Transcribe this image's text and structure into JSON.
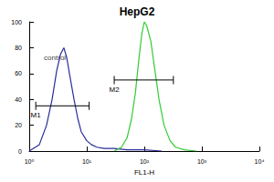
{
  "chart_data": {
    "type": "line",
    "title": "HepG2",
    "x_label": "FL1-H",
    "log": "x",
    "grid": false,
    "xlim": [
      1,
      10000
    ],
    "xticks": [
      {
        "value": 1,
        "label": "10⁰"
      },
      {
        "value": 10,
        "label": "10¹"
      },
      {
        "value": 100,
        "label": "10²"
      },
      {
        "value": 1000,
        "label": "10³"
      },
      {
        "value": 10000,
        "label": "10⁴"
      }
    ],
    "ylim": [
      0,
      100
    ],
    "yticks": [
      0,
      20,
      40,
      60,
      80,
      100
    ],
    "series": [
      {
        "color": "#2b2b9c",
        "x": [
          1,
          1.5,
          2,
          2.5,
          3,
          3.5,
          4,
          4.5,
          5,
          6,
          7,
          8,
          10,
          12,
          15,
          20,
          30,
          50,
          100,
          200
        ],
        "values": [
          0,
          5,
          20,
          40,
          62,
          75,
          80,
          72,
          60,
          40,
          25,
          15,
          8,
          5,
          3,
          2,
          2,
          1,
          1,
          0
        ]
      },
      {
        "color": "#33cc33",
        "x": [
          30,
          40,
          50,
          60,
          70,
          80,
          90,
          100,
          110,
          130,
          150,
          180,
          220,
          280,
          350,
          500,
          800
        ],
        "values": [
          0,
          3,
          10,
          25,
          45,
          70,
          90,
          100,
          97,
          85,
          65,
          40,
          20,
          8,
          3,
          1,
          0
        ]
      }
    ],
    "annotations": [
      {
        "text": "control",
        "x": 1.5,
        "y": 72
      }
    ],
    "markers": [
      {
        "label": "M1",
        "x": [
          1.3,
          11
        ],
        "y": 35
      },
      {
        "label": "M2",
        "x": [
          30,
          320
        ],
        "y": 55
      }
    ]
  }
}
